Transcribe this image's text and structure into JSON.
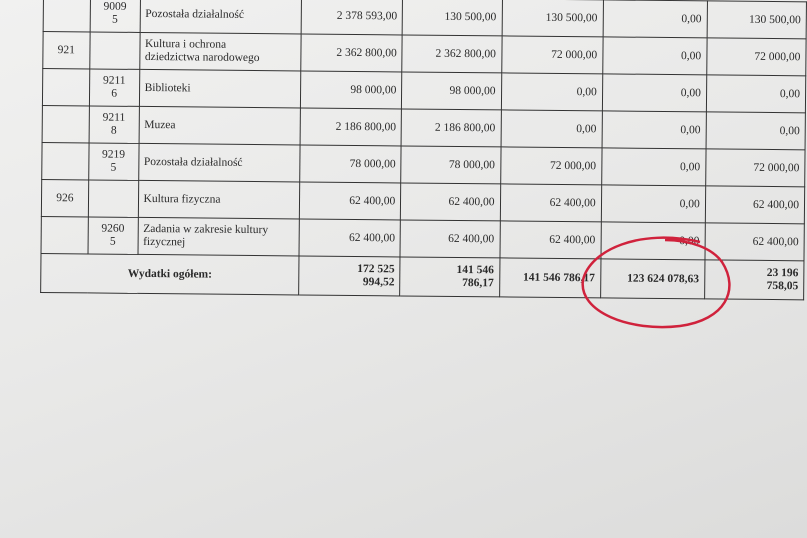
{
  "table": {
    "rows": [
      [
        "",
        "9009\n5",
        "Pozostała działalność",
        "2 378 593,00",
        "130 500,00",
        "130 500,00",
        "0,00",
        "130 500,00"
      ],
      [
        "921",
        "",
        "Kultura i ochrona\ndziedzictwa narodowego",
        "2 362 800,00",
        "2 362 800,00",
        "72 000,00",
        "0,00",
        "72 000,00"
      ],
      [
        "",
        "9211\n6",
        "Biblioteki",
        "98 000,00",
        "98 000,00",
        "0,00",
        "0,00",
        "0,00"
      ],
      [
        "",
        "9211\n8",
        "Muzea",
        "2 186 800,00",
        "2 186 800,00",
        "0,00",
        "0,00",
        "0,00"
      ],
      [
        "",
        "9219\n5",
        "Pozostała działalność",
        "78 000,00",
        "78 000,00",
        "72 000,00",
        "0,00",
        "72 000,00"
      ],
      [
        "926",
        "",
        "Kultura fizyczna",
        "62 400,00",
        "62 400,00",
        "62 400,00",
        "0,00",
        "62 400,00"
      ],
      [
        "",
        "9260\n5",
        "Zadania w zakresie kultury\nfizycznej",
        "62 400,00",
        "62 400,00",
        "62 400,00",
        "0,00",
        "62 400,00"
      ]
    ],
    "total": {
      "label": "Wydatki ogółem:",
      "values": [
        "172 525\n994,52",
        "141 546\n786,17",
        "141 546 786,17",
        "123 624 078,63",
        "23 196\n758,05"
      ]
    }
  }
}
